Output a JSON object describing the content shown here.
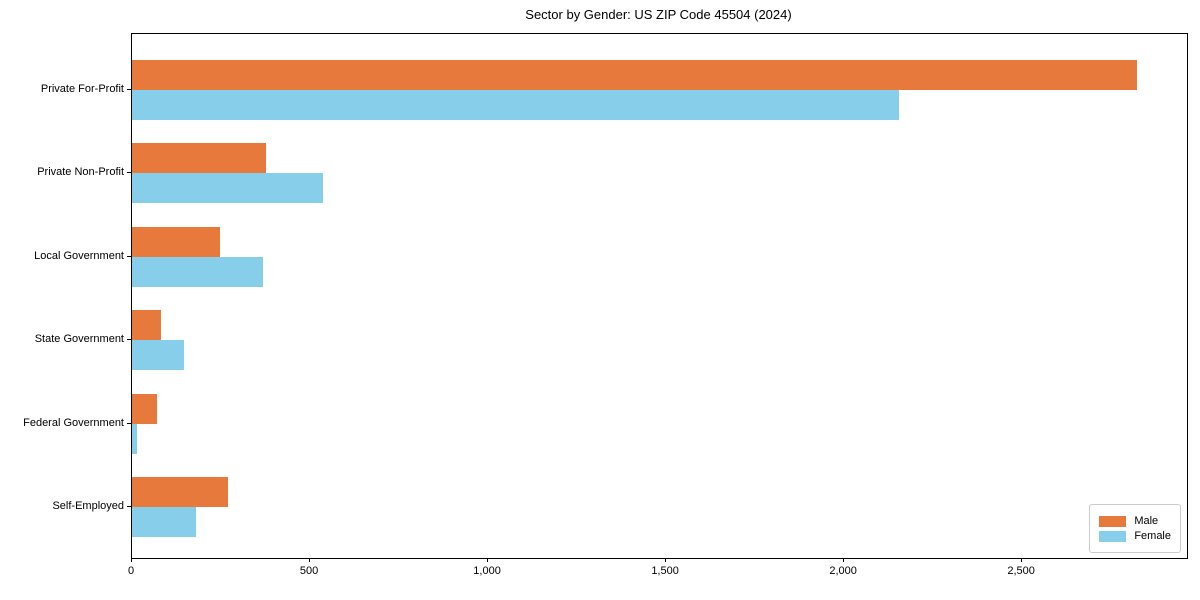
{
  "chart_data": {
    "type": "bar",
    "orientation": "horizontal",
    "title": "Sector by Gender: US ZIP Code 45504 (2024)",
    "categories": [
      "Private For-Profit",
      "Private Non-Profit",
      "Local Government",
      "State Government",
      "Federal Government",
      "Self-Employed"
    ],
    "series": [
      {
        "name": "Male",
        "color": "#e8793d",
        "values": [
          2823,
          376,
          247,
          82,
          70,
          270
        ]
      },
      {
        "name": "Female",
        "color": "#87ceeb",
        "values": [
          2154,
          537,
          368,
          146,
          15,
          180
        ]
      }
    ],
    "xlabel": "",
    "ylabel": "",
    "xlim": [
      0,
      2963
    ],
    "x_ticks": [
      0,
      500,
      1000,
      1500,
      2000,
      2500
    ],
    "x_tick_labels": [
      "0",
      "500",
      "1,000",
      "1,500",
      "2,000",
      "2,500"
    ],
    "grid": false,
    "legend": {
      "position": "lower right",
      "entries": [
        "Male",
        "Female"
      ]
    },
    "colors": {
      "background": "#ffffff",
      "spine": "#000000",
      "text": "#000000",
      "legend_border": "#cccccc"
    }
  }
}
